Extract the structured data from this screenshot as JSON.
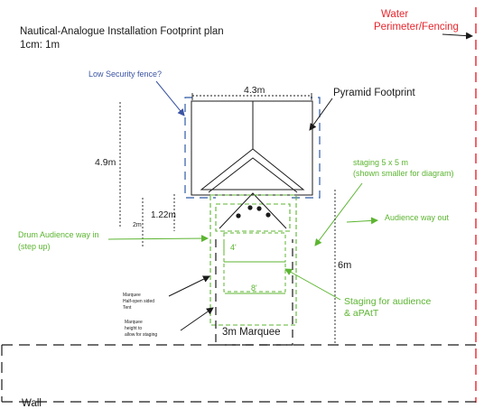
{
  "title": "Nautical-Analogue Installation Footprint plan",
  "scale": "1cm: 1m",
  "water_label": [
    "Water",
    "Perimeter/Fencing"
  ],
  "low_fence_label": "Low Security fence?",
  "pyramid_label": "Pyramid Footprint",
  "dim_width": "4.3m",
  "dim_height": "4.9m",
  "dim_122": "1.22m",
  "dim_2m": "2m",
  "dim_4ft": "4'",
  "dim_8ft": "8'",
  "dim_6m": "6m",
  "staging_label": [
    "staging 5 x 5 m",
    "(shown smaller for diagram)"
  ],
  "audience_out_label": "Audience way out",
  "drum_label": [
    "Drum Audience way in",
    "(step up)"
  ],
  "marquee_half_label": [
    "Marquee",
    "Half-open sided",
    "Tent"
  ],
  "marquee_height_label": [
    "Marquee",
    "height to",
    "allow for staging"
  ],
  "staging_audience_label": [
    "Staging for audience",
    "& aPAtT"
  ],
  "marquee_label": "3m Marquee",
  "wall_label": "Wall",
  "colors": {
    "black": "#1a1a1a",
    "red": "#e8262d",
    "green": "#5cb531",
    "blue": "#3b54a3",
    "blue_dash": "#2e5aa8"
  }
}
